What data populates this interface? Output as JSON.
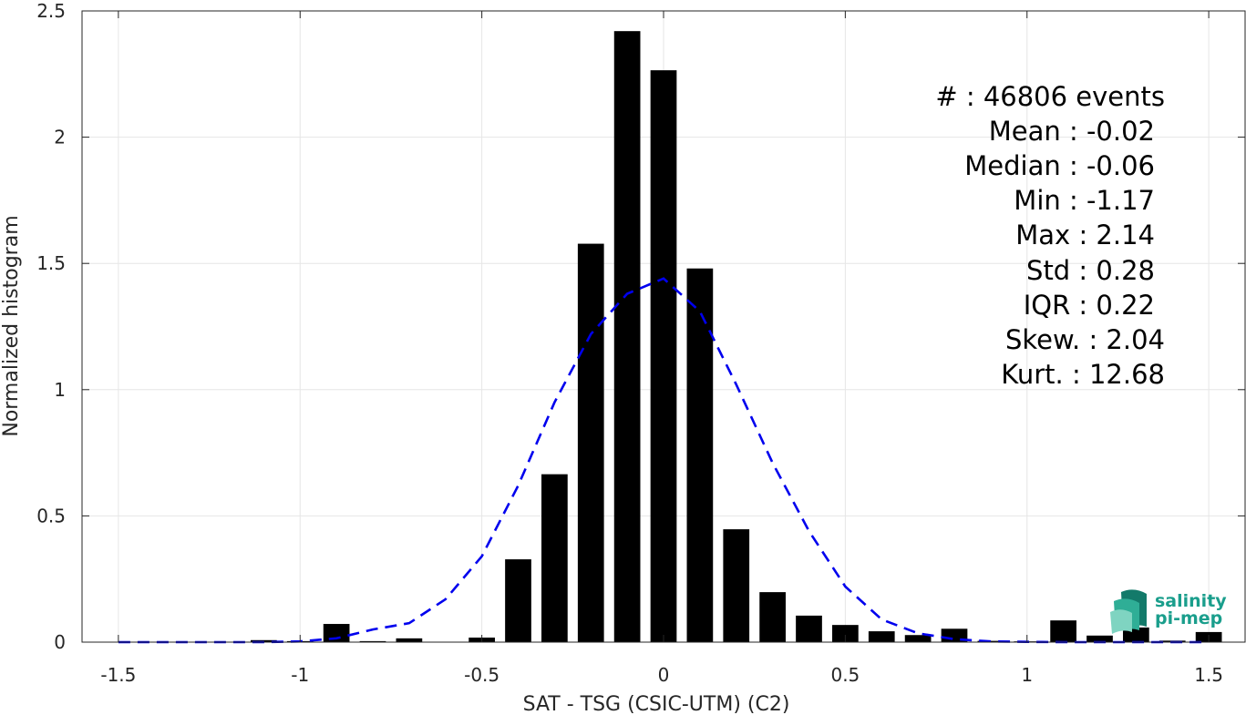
{
  "chart_data": {
    "type": "bar",
    "xlabel": "SAT - TSG (CSIC-UTM) (C2)",
    "ylabel": "Normalized histogram",
    "xlim": [
      -1.6,
      1.6
    ],
    "ylim": [
      0,
      2.5
    ],
    "xticks": [
      -1.5,
      -1,
      -0.5,
      0,
      0.5,
      1,
      1.5
    ],
    "xtick_labels": [
      "-1.5",
      "-1",
      "-0.5",
      "0",
      "0.5",
      "1",
      "1.5"
    ],
    "yticks": [
      0,
      0.5,
      1,
      1.5,
      2,
      2.5
    ],
    "ytick_labels": [
      "0",
      "0.5",
      "1",
      "1.5",
      "2",
      "2.5"
    ],
    "grid": true,
    "bin_width": 0.1,
    "bars": {
      "x": [
        -1.1,
        -1.0,
        -0.9,
        -0.8,
        -0.7,
        -0.5,
        -0.4,
        -0.3,
        -0.2,
        -0.1,
        0.0,
        0.1,
        0.2,
        0.3,
        0.4,
        0.5,
        0.6,
        0.7,
        0.8,
        0.9,
        1.0,
        1.1,
        1.2,
        1.3,
        1.4,
        1.5
      ],
      "values": [
        0.008,
        0.004,
        0.072,
        0.004,
        0.015,
        0.018,
        0.328,
        0.665,
        1.578,
        2.42,
        2.265,
        1.48,
        0.447,
        0.198,
        0.105,
        0.068,
        0.043,
        0.028,
        0.053,
        0.005,
        0.003,
        0.086,
        0.026,
        0.058,
        0.006,
        0.04
      ],
      "color": "#000000"
    },
    "series": [
      {
        "style": "dashed",
        "color": "#0000ee",
        "x": [
          -1.5,
          -1.4,
          -1.3,
          -1.2,
          -1.1,
          -1.0,
          -0.9,
          -0.8,
          -0.7,
          -0.6,
          -0.5,
          -0.4,
          -0.3,
          -0.2,
          -0.1,
          0.0,
          0.1,
          0.2,
          0.3,
          0.4,
          0.5,
          0.6,
          0.7,
          0.8,
          0.9,
          1.0,
          1.1,
          1.2,
          1.3,
          1.4,
          1.5
        ],
        "values": [
          0.0,
          0.0,
          0.0,
          0.0,
          0.0,
          0.003,
          0.015,
          0.05,
          0.075,
          0.17,
          0.34,
          0.62,
          0.95,
          1.22,
          1.38,
          1.44,
          1.31,
          1.02,
          0.71,
          0.44,
          0.22,
          0.09,
          0.035,
          0.012,
          0.003,
          0.001,
          0.0,
          0.0,
          0.0,
          0.0,
          0.0
        ]
      }
    ],
    "annotations": [
      "#  : 46806 events",
      "Mean : -0.02",
      "Median : -0.06",
      "Min : -1.17",
      "Max : 2.14",
      "Std : 0.28",
      "IQR : 0.22",
      "Skew. : 2.04",
      "Kurt. : 12.68"
    ]
  },
  "logo": {
    "line1": "salinity",
    "line2": "pi-mep",
    "colors": {
      "light": "#7fd4c1",
      "mid": "#2fae96",
      "dark": "#137a6a"
    }
  }
}
